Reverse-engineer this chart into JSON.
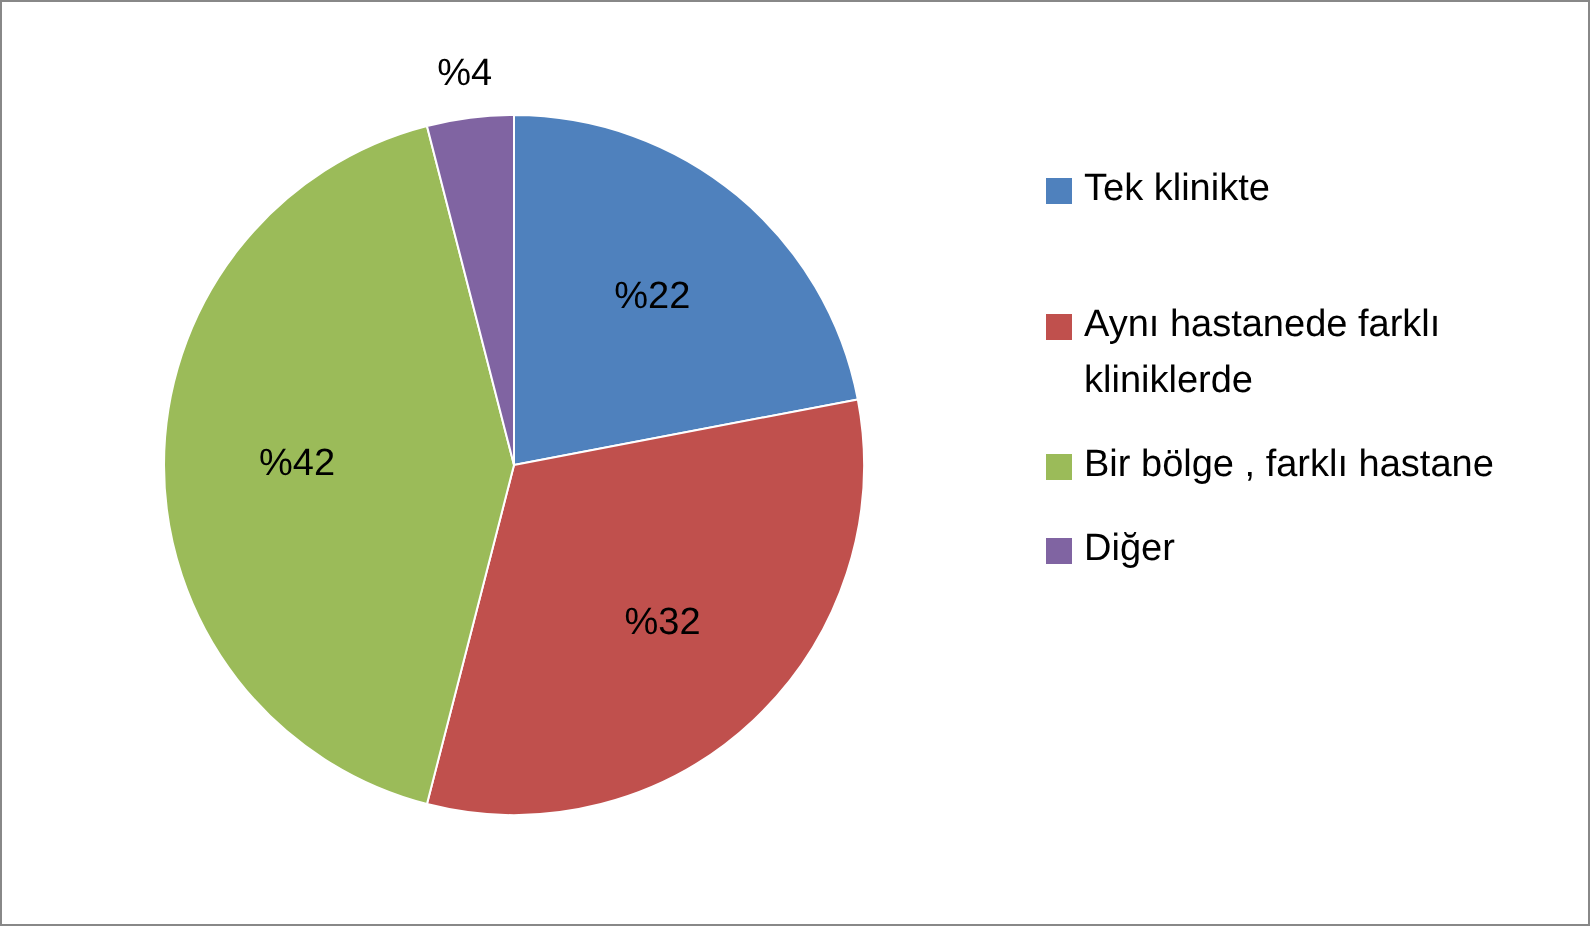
{
  "chart_data": {
    "type": "pie",
    "categories": [
      "Tek klinikte",
      "Aynı hastanede farklı kliniklerde",
      "Bir bölge , farklı hastane",
      "Diğer"
    ],
    "values": [
      22,
      32,
      42,
      4
    ],
    "colors": [
      "#4f81bd",
      "#c0504d",
      "#9bbb59",
      "#8064a2"
    ],
    "value_labels": [
      "%22",
      "%32",
      "%42",
      "%4"
    ],
    "legend": "right"
  }
}
